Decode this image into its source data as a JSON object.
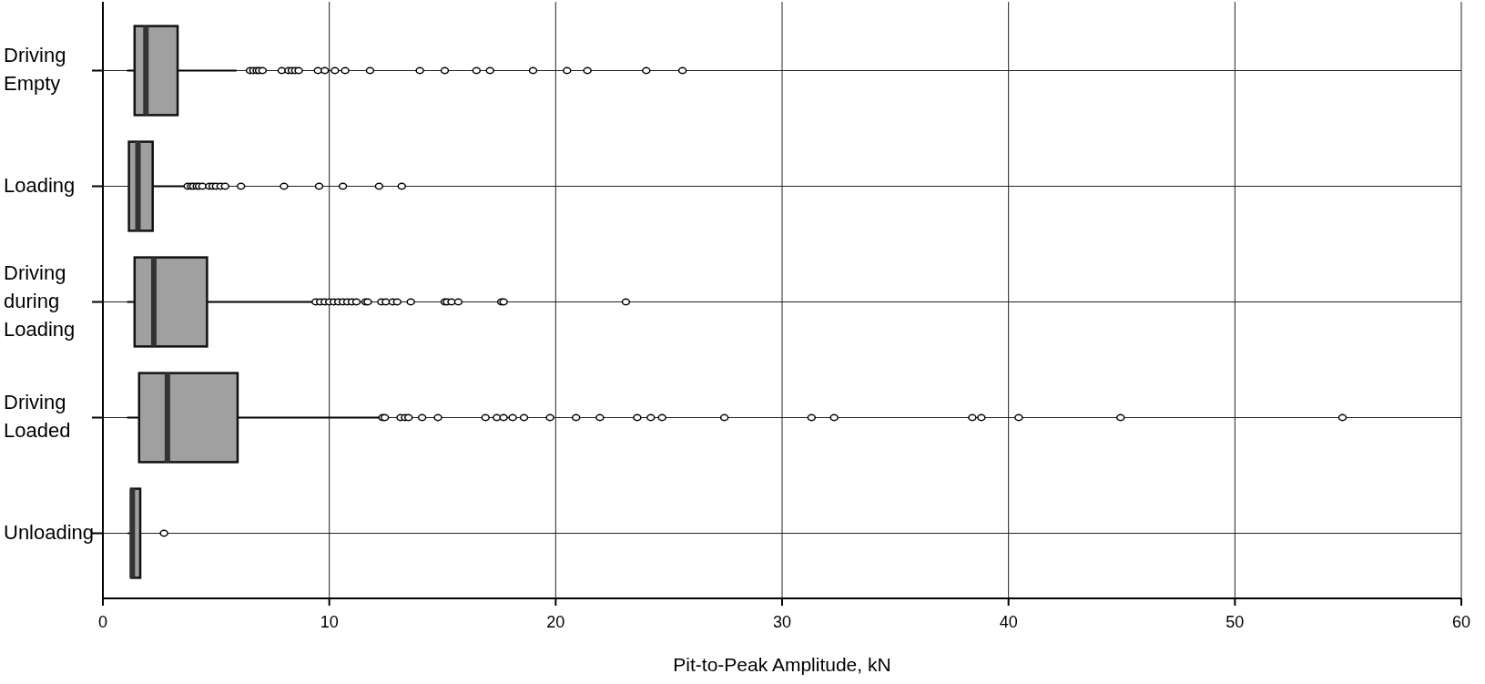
{
  "chart_data": {
    "type": "box",
    "orientation": "horizontal",
    "xlabel": "Pit-to-Peak Amplitude, kN",
    "categories": [
      "Driving Empty",
      "Loading",
      "Driving during Loading",
      "Driving Loaded",
      "Unloading"
    ],
    "color": "#a0a0a0",
    "boxes": [
      {
        "low": 1.07,
        "q1": 1.4,
        "median": 1.9,
        "q3": 3.3,
        "high": 5.9,
        "outliers": [
          6.5,
          6.65,
          6.8,
          6.9,
          7.05,
          7.9,
          8.2,
          8.35,
          8.5,
          8.65,
          9.5,
          9.8,
          10.25,
          10.7,
          11.8,
          14.0,
          15.1,
          16.5,
          17.1,
          19.0,
          20.5,
          21.4,
          24.0,
          25.6
        ]
      },
      {
        "low": 1.15,
        "q1": 1.15,
        "median": 1.55,
        "q3": 2.2,
        "high": 3.75,
        "outliers": [
          3.75,
          3.9,
          4.0,
          4.15,
          4.25,
          4.4,
          4.7,
          4.85,
          5.0,
          5.2,
          5.4,
          6.1,
          8.0,
          9.55,
          10.6,
          12.2,
          13.2
        ]
      },
      {
        "low": 1.07,
        "q1": 1.4,
        "median": 2.25,
        "q3": 4.6,
        "high": 9.4,
        "outliers": [
          9.4,
          9.6,
          9.8,
          10.0,
          10.2,
          10.4,
          10.6,
          10.8,
          11.0,
          11.2,
          11.6,
          11.7,
          12.3,
          12.5,
          12.8,
          13.0,
          13.6,
          15.1,
          15.2,
          15.4,
          15.7,
          17.6,
          17.7,
          23.1
        ]
      },
      {
        "low": 1.07,
        "q1": 1.6,
        "median": 2.85,
        "q3": 5.95,
        "high": 12.35,
        "outliers": [
          12.35,
          12.45,
          13.15,
          13.35,
          13.5,
          14.1,
          14.8,
          16.9,
          17.4,
          17.7,
          18.1,
          18.6,
          19.75,
          20.9,
          21.95,
          23.6,
          24.2,
          24.7,
          27.45,
          31.3,
          32.3,
          38.4,
          38.8,
          40.45,
          44.95,
          54.75
        ]
      },
      {
        "low": 1.1,
        "q1": 1.25,
        "median": 1.3,
        "q3": 1.65,
        "high": 1.65,
        "outliers": [
          2.7
        ]
      }
    ],
    "xlim": [
      0,
      60
    ],
    "xticks": [
      0,
      10,
      20,
      30,
      40,
      50,
      60
    ],
    "grid": true
  }
}
